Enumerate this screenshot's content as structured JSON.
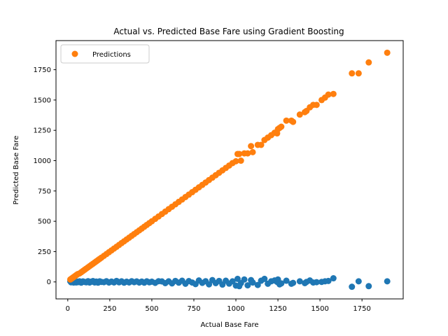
{
  "chart_data": {
    "type": "scatter",
    "title": "Actual vs. Predicted Base Fare using Gradient Boosting",
    "xlabel": "Actual Base Fare",
    "ylabel": "Predicted Base Fare",
    "xlim": [
      -70,
      1995
    ],
    "ylim": [
      -140,
      1990
    ],
    "x_ticks": [
      0,
      250,
      500,
      750,
      1000,
      1250,
      1500,
      1750
    ],
    "y_ticks": [
      0,
      250,
      500,
      750,
      1000,
      1250,
      1500,
      1750
    ],
    "x_tick_labels": [
      "0",
      "250",
      "500",
      "750",
      "1000",
      "1250",
      "1500",
      "1750"
    ],
    "y_tick_labels": [
      "0",
      "250",
      "500",
      "750",
      "1000",
      "1250",
      "1500",
      "1750"
    ],
    "grid": false,
    "legend": {
      "placement": "top-left",
      "entries": [
        "Predictions"
      ]
    },
    "series": [
      {
        "name": "",
        "color": "#1f77b4",
        "x": [
          15,
          20,
          25,
          30,
          35,
          40,
          45,
          50,
          55,
          60,
          70,
          80,
          90,
          100,
          110,
          120,
          130,
          140,
          150,
          160,
          170,
          180,
          190,
          200,
          215,
          230,
          245,
          260,
          275,
          290,
          305,
          320,
          335,
          350,
          365,
          380,
          395,
          410,
          425,
          440,
          455,
          470,
          485,
          500,
          520,
          540,
          560,
          580,
          600,
          620,
          640,
          660,
          680,
          700,
          720,
          740,
          760,
          780,
          800,
          820,
          840,
          860,
          880,
          900,
          920,
          940,
          960,
          980,
          1000,
          1010,
          1020,
          1030,
          1050,
          1070,
          1090,
          1100,
          1130,
          1150,
          1170,
          1190,
          1210,
          1230,
          1245,
          1250,
          1260,
          1270,
          1300,
          1330,
          1340,
          1380,
          1410,
          1420,
          1440,
          1460,
          1480,
          1510,
          1530,
          1550,
          1580,
          1690,
          1730,
          1790,
          1900
        ],
        "y": [
          5,
          -3,
          0,
          8,
          -5,
          2,
          6,
          -4,
          3,
          -2,
          5,
          -6,
          4,
          0,
          -3,
          6,
          -5,
          2,
          7,
          -4,
          3,
          -6,
          5,
          0,
          -2,
          6,
          -5,
          3,
          -4,
          8,
          -3,
          5,
          -6,
          2,
          -4,
          6,
          -2,
          4,
          -5,
          3,
          -6,
          5,
          -3,
          2,
          -8,
          6,
          4,
          -10,
          5,
          -12,
          8,
          -6,
          10,
          -15,
          7,
          -5,
          -18,
          12,
          -8,
          6,
          -20,
          15,
          -10,
          8,
          -22,
          10,
          -14,
          5,
          -30,
          25,
          -35,
          -10,
          20,
          -28,
          15,
          -5,
          -25,
          10,
          25,
          -15,
          5,
          12,
          0,
          20,
          -20,
          -12,
          10,
          -15,
          -8,
          5,
          -10,
          0,
          12,
          -5,
          -2,
          0,
          5,
          8,
          30,
          -40,
          5,
          -35,
          5
        ]
      },
      {
        "name": "Predictions",
        "color": "#ff7f0e",
        "x": [
          15,
          20,
          25,
          30,
          35,
          40,
          45,
          50,
          55,
          60,
          70,
          80,
          90,
          100,
          110,
          120,
          130,
          140,
          150,
          160,
          170,
          180,
          190,
          200,
          215,
          230,
          245,
          260,
          275,
          290,
          305,
          320,
          335,
          350,
          365,
          380,
          395,
          410,
          425,
          440,
          455,
          470,
          485,
          500,
          520,
          540,
          560,
          580,
          600,
          620,
          640,
          660,
          680,
          700,
          720,
          740,
          760,
          780,
          800,
          820,
          840,
          860,
          880,
          900,
          920,
          940,
          960,
          980,
          1000,
          1010,
          1020,
          1030,
          1050,
          1070,
          1090,
          1100,
          1130,
          1150,
          1170,
          1190,
          1210,
          1230,
          1245,
          1250,
          1260,
          1270,
          1300,
          1330,
          1340,
          1380,
          1410,
          1420,
          1440,
          1460,
          1480,
          1510,
          1530,
          1550,
          1580,
          1690,
          1730,
          1790,
          1900
        ],
        "y": [
          20,
          25,
          30,
          35,
          40,
          45,
          50,
          55,
          60,
          65,
          70,
          80,
          90,
          100,
          110,
          120,
          130,
          140,
          150,
          160,
          170,
          180,
          190,
          200,
          215,
          230,
          245,
          260,
          275,
          290,
          305,
          320,
          335,
          350,
          365,
          380,
          395,
          410,
          425,
          440,
          455,
          470,
          485,
          500,
          520,
          540,
          560,
          580,
          600,
          620,
          640,
          660,
          680,
          700,
          720,
          740,
          760,
          780,
          800,
          820,
          840,
          860,
          880,
          900,
          920,
          940,
          960,
          980,
          995,
          1055,
          1055,
          1000,
          1060,
          1060,
          1120,
          1070,
          1130,
          1130,
          1170,
          1190,
          1210,
          1230,
          1225,
          1260,
          1270,
          1280,
          1330,
          1330,
          1320,
          1380,
          1400,
          1410,
          1440,
          1460,
          1460,
          1500,
          1520,
          1545,
          1550,
          1720,
          1720,
          1810,
          1890
        ]
      }
    ]
  }
}
